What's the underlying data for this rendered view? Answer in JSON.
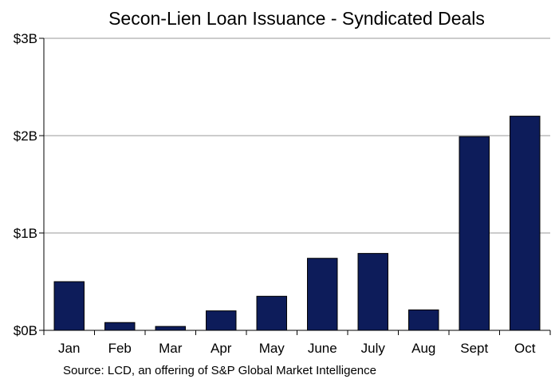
{
  "chart_data": {
    "type": "bar",
    "title": "Secon-Lien Loan Issuance - Syndicated Deals",
    "source": "Source: LCD, an offering of S&P Global Market Intelligence",
    "categories": [
      "Jan",
      "Feb",
      "Mar",
      "Apr",
      "May",
      "June",
      "July",
      "Aug",
      "Sept",
      "Oct"
    ],
    "values": [
      0.5,
      0.08,
      0.04,
      0.2,
      0.35,
      0.74,
      0.79,
      0.21,
      1.99,
      2.2
    ],
    "unit": "billion USD",
    "ylim": [
      0,
      3
    ],
    "yticks": [
      {
        "value": 0,
        "label": "$0B"
      },
      {
        "value": 1,
        "label": "$1B"
      },
      {
        "value": 2,
        "label": "$2B"
      },
      {
        "value": 3,
        "label": "$3B"
      }
    ],
    "grid": true,
    "bar_color": "#0d1c5a",
    "grid_color": "#9a9a9a"
  }
}
